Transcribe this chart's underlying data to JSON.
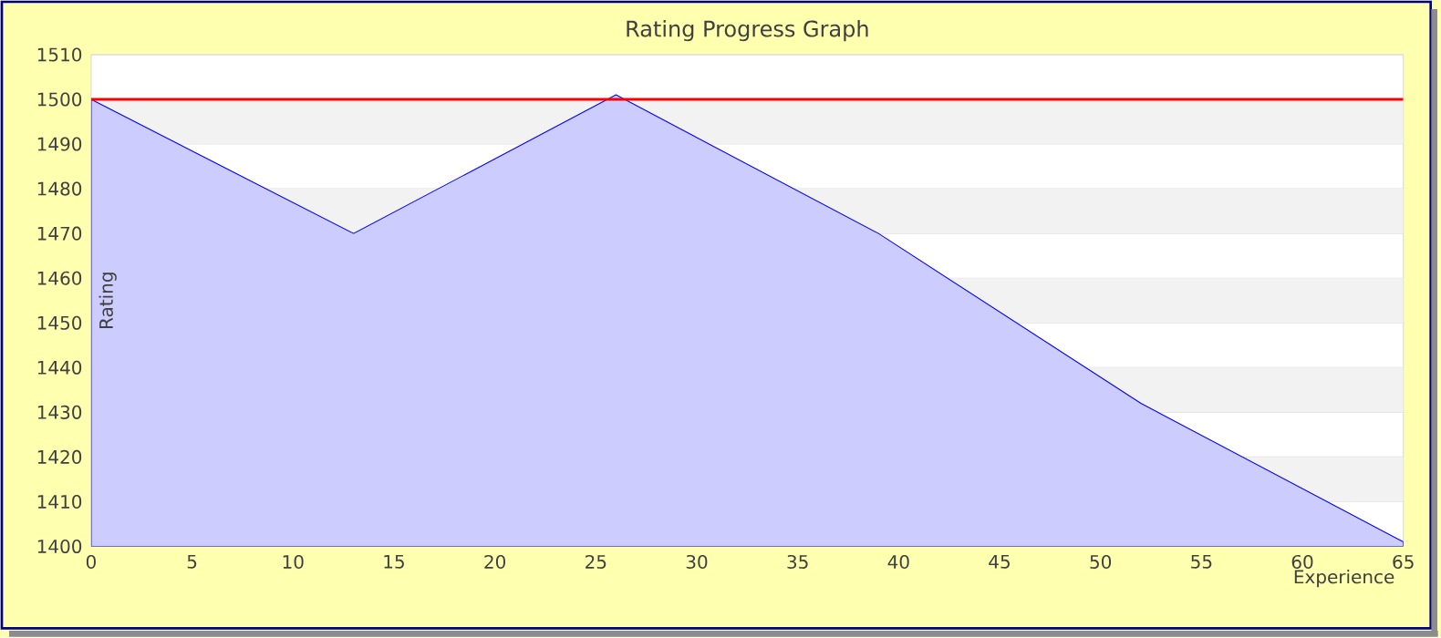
{
  "chart_data": {
    "type": "area",
    "title": "Rating Progress Graph",
    "xlabel": "Experience",
    "ylabel": "Rating",
    "series": [
      {
        "x": [
          0,
          13,
          26,
          39,
          52,
          65
        ],
        "values": [
          1500,
          1470,
          1501,
          1470,
          1432,
          1401
        ],
        "color": "#ccccff"
      }
    ],
    "xlim": [
      0,
      65
    ],
    "ylim": [
      1400,
      1510
    ],
    "xticks": [
      0,
      5,
      10,
      15,
      20,
      25,
      30,
      35,
      40,
      45,
      50,
      55,
      60,
      65
    ],
    "yticks": [
      1400,
      1410,
      1420,
      1430,
      1440,
      1450,
      1460,
      1470,
      1480,
      1490,
      1500,
      1510
    ],
    "grid": "y",
    "ref_lines": [
      {
        "axis": "y",
        "value": 1500,
        "color": "#ff0000"
      }
    ]
  }
}
